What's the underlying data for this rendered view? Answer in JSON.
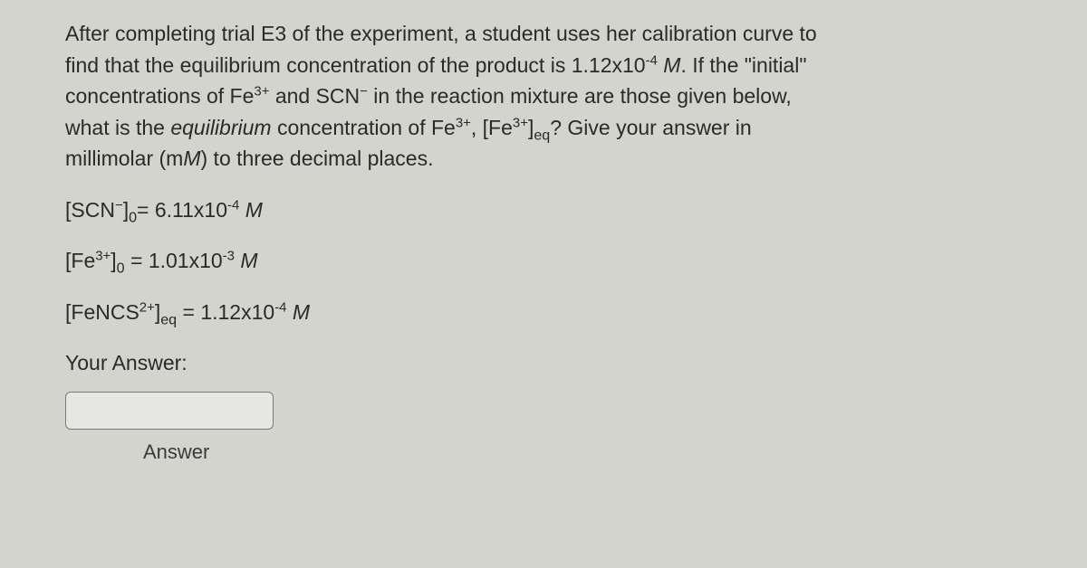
{
  "question": {
    "line1": "After completing trial E3 of the experiment, a student uses her calibration curve to",
    "line2_a": "find that the equilibrium concentration of the product is 1.12x10",
    "line2_exp": "-4",
    "line2_b": " ",
    "line2_c": "M",
    "line2_d": ". If the \"initial\"",
    "line3_a": "concentrations of Fe",
    "line3_sup1": "3+",
    "line3_b": " and SCN",
    "line3_sup2": "−",
    "line3_c": " in the reaction mixture are those given below,",
    "line4_a": "what is the ",
    "line4_eq": "equilibrium",
    "line4_b": " concentration of Fe",
    "line4_sup": "3+",
    "line4_c": ", [Fe",
    "line4_sup2": "3+",
    "line4_d": "]",
    "line4_sub": "eq",
    "line4_e": "? Give your answer in",
    "line5_a": "millimolar (m",
    "line5_m": "M",
    "line5_b": ") to three decimal places."
  },
  "data": {
    "scn_a": "[SCN",
    "scn_sup": "−",
    "scn_b": "]",
    "scn_sub": "0",
    "scn_c": "= 6.11x10",
    "scn_exp": "-4",
    "scn_d": " ",
    "scn_m": "M",
    "fe_a": "[Fe",
    "fe_sup": "3+",
    "fe_b": "]",
    "fe_sub": "0",
    "fe_c": " = 1.01x10",
    "fe_exp": "-3",
    "fe_d": " ",
    "fe_m": "M",
    "fencs_a": "[FeNCS",
    "fencs_sup": "2+",
    "fencs_b": "]",
    "fencs_sub": "eq",
    "fencs_c": " = 1.12x10",
    "fencs_exp": "-4",
    "fencs_d": " ",
    "fencs_m": "M"
  },
  "answer": {
    "prompt": "Your Answer:",
    "label": "Answer",
    "value": ""
  }
}
